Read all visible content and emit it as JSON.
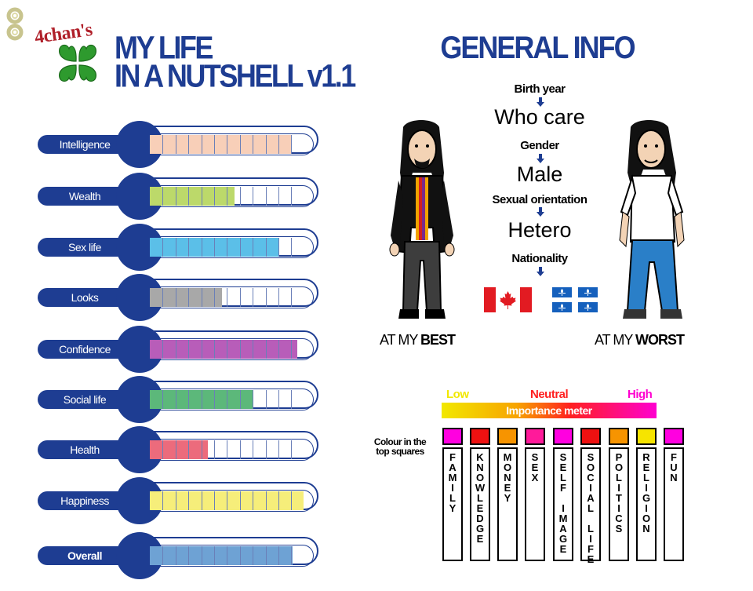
{
  "header": {
    "brand": "4chan's",
    "title_line1": "MY LIFE",
    "title_line2": "IN A NUTSHELL v1.1"
  },
  "stats": [
    {
      "label": "Intelligence",
      "value": 0.92,
      "color": "#f8cfb8"
    },
    {
      "label": "Wealth",
      "value": 0.55,
      "color": "#bcd96a"
    },
    {
      "label": "Sex life",
      "value": 0.84,
      "color": "#5bbfe8"
    },
    {
      "label": "Looks",
      "value": 0.47,
      "color": "#a8a8a8"
    },
    {
      "label": "Confidence",
      "value": 0.96,
      "color": "#b85db9"
    },
    {
      "label": "Social life",
      "value": 0.67,
      "color": "#5cb87a"
    },
    {
      "label": "Health",
      "value": 0.38,
      "color": "#ec6b7c"
    },
    {
      "label": "Happiness",
      "value": 1.0,
      "color": "#f6ee7a"
    },
    {
      "label": "Overall",
      "value": 0.93,
      "color": "#6ea2d4"
    }
  ],
  "general_info": {
    "title": "GENERAL INFO",
    "birth_year_label": "Birth year",
    "birth_year_value": "Who care",
    "gender_label": "Gender",
    "gender_value": "Male",
    "orientation_label": "Sexual orientation",
    "orientation_value": "Hetero",
    "nationality_label": "Nationality",
    "flags": [
      "canada-flag-icon",
      "quebec-flag-icon"
    ],
    "best_caption_prefix": "AT MY ",
    "best_caption_bold": "BEST",
    "worst_caption_prefix": "AT MY ",
    "worst_caption_bold": "WORST"
  },
  "importance": {
    "low": "Low",
    "neutral": "Neutral",
    "high": "High",
    "meter_label": "Importance meter",
    "colour_note": "Colour in the top squares",
    "colors": {
      "low": "#f2e800",
      "mid": "#f7a400",
      "neutral": "#ff2020",
      "high": "#ff00d0"
    },
    "categories": [
      {
        "label": "FAMILY",
        "color": "#ff00e0"
      },
      {
        "label": "KNOWLEDGE",
        "color": "#ee1111"
      },
      {
        "label": "MONEY",
        "color": "#f79400"
      },
      {
        "label": "SEX",
        "color": "#ff1a9a"
      },
      {
        "label": "SELF IMAGE",
        "color": "#ff00e0"
      },
      {
        "label": "SOCIAL LIFE",
        "color": "#ee1111"
      },
      {
        "label": "POLITICS",
        "color": "#f79400"
      },
      {
        "label": "RELIGION",
        "color": "#f6e400"
      },
      {
        "label": "FUN",
        "color": "#ff00e0"
      }
    ]
  }
}
